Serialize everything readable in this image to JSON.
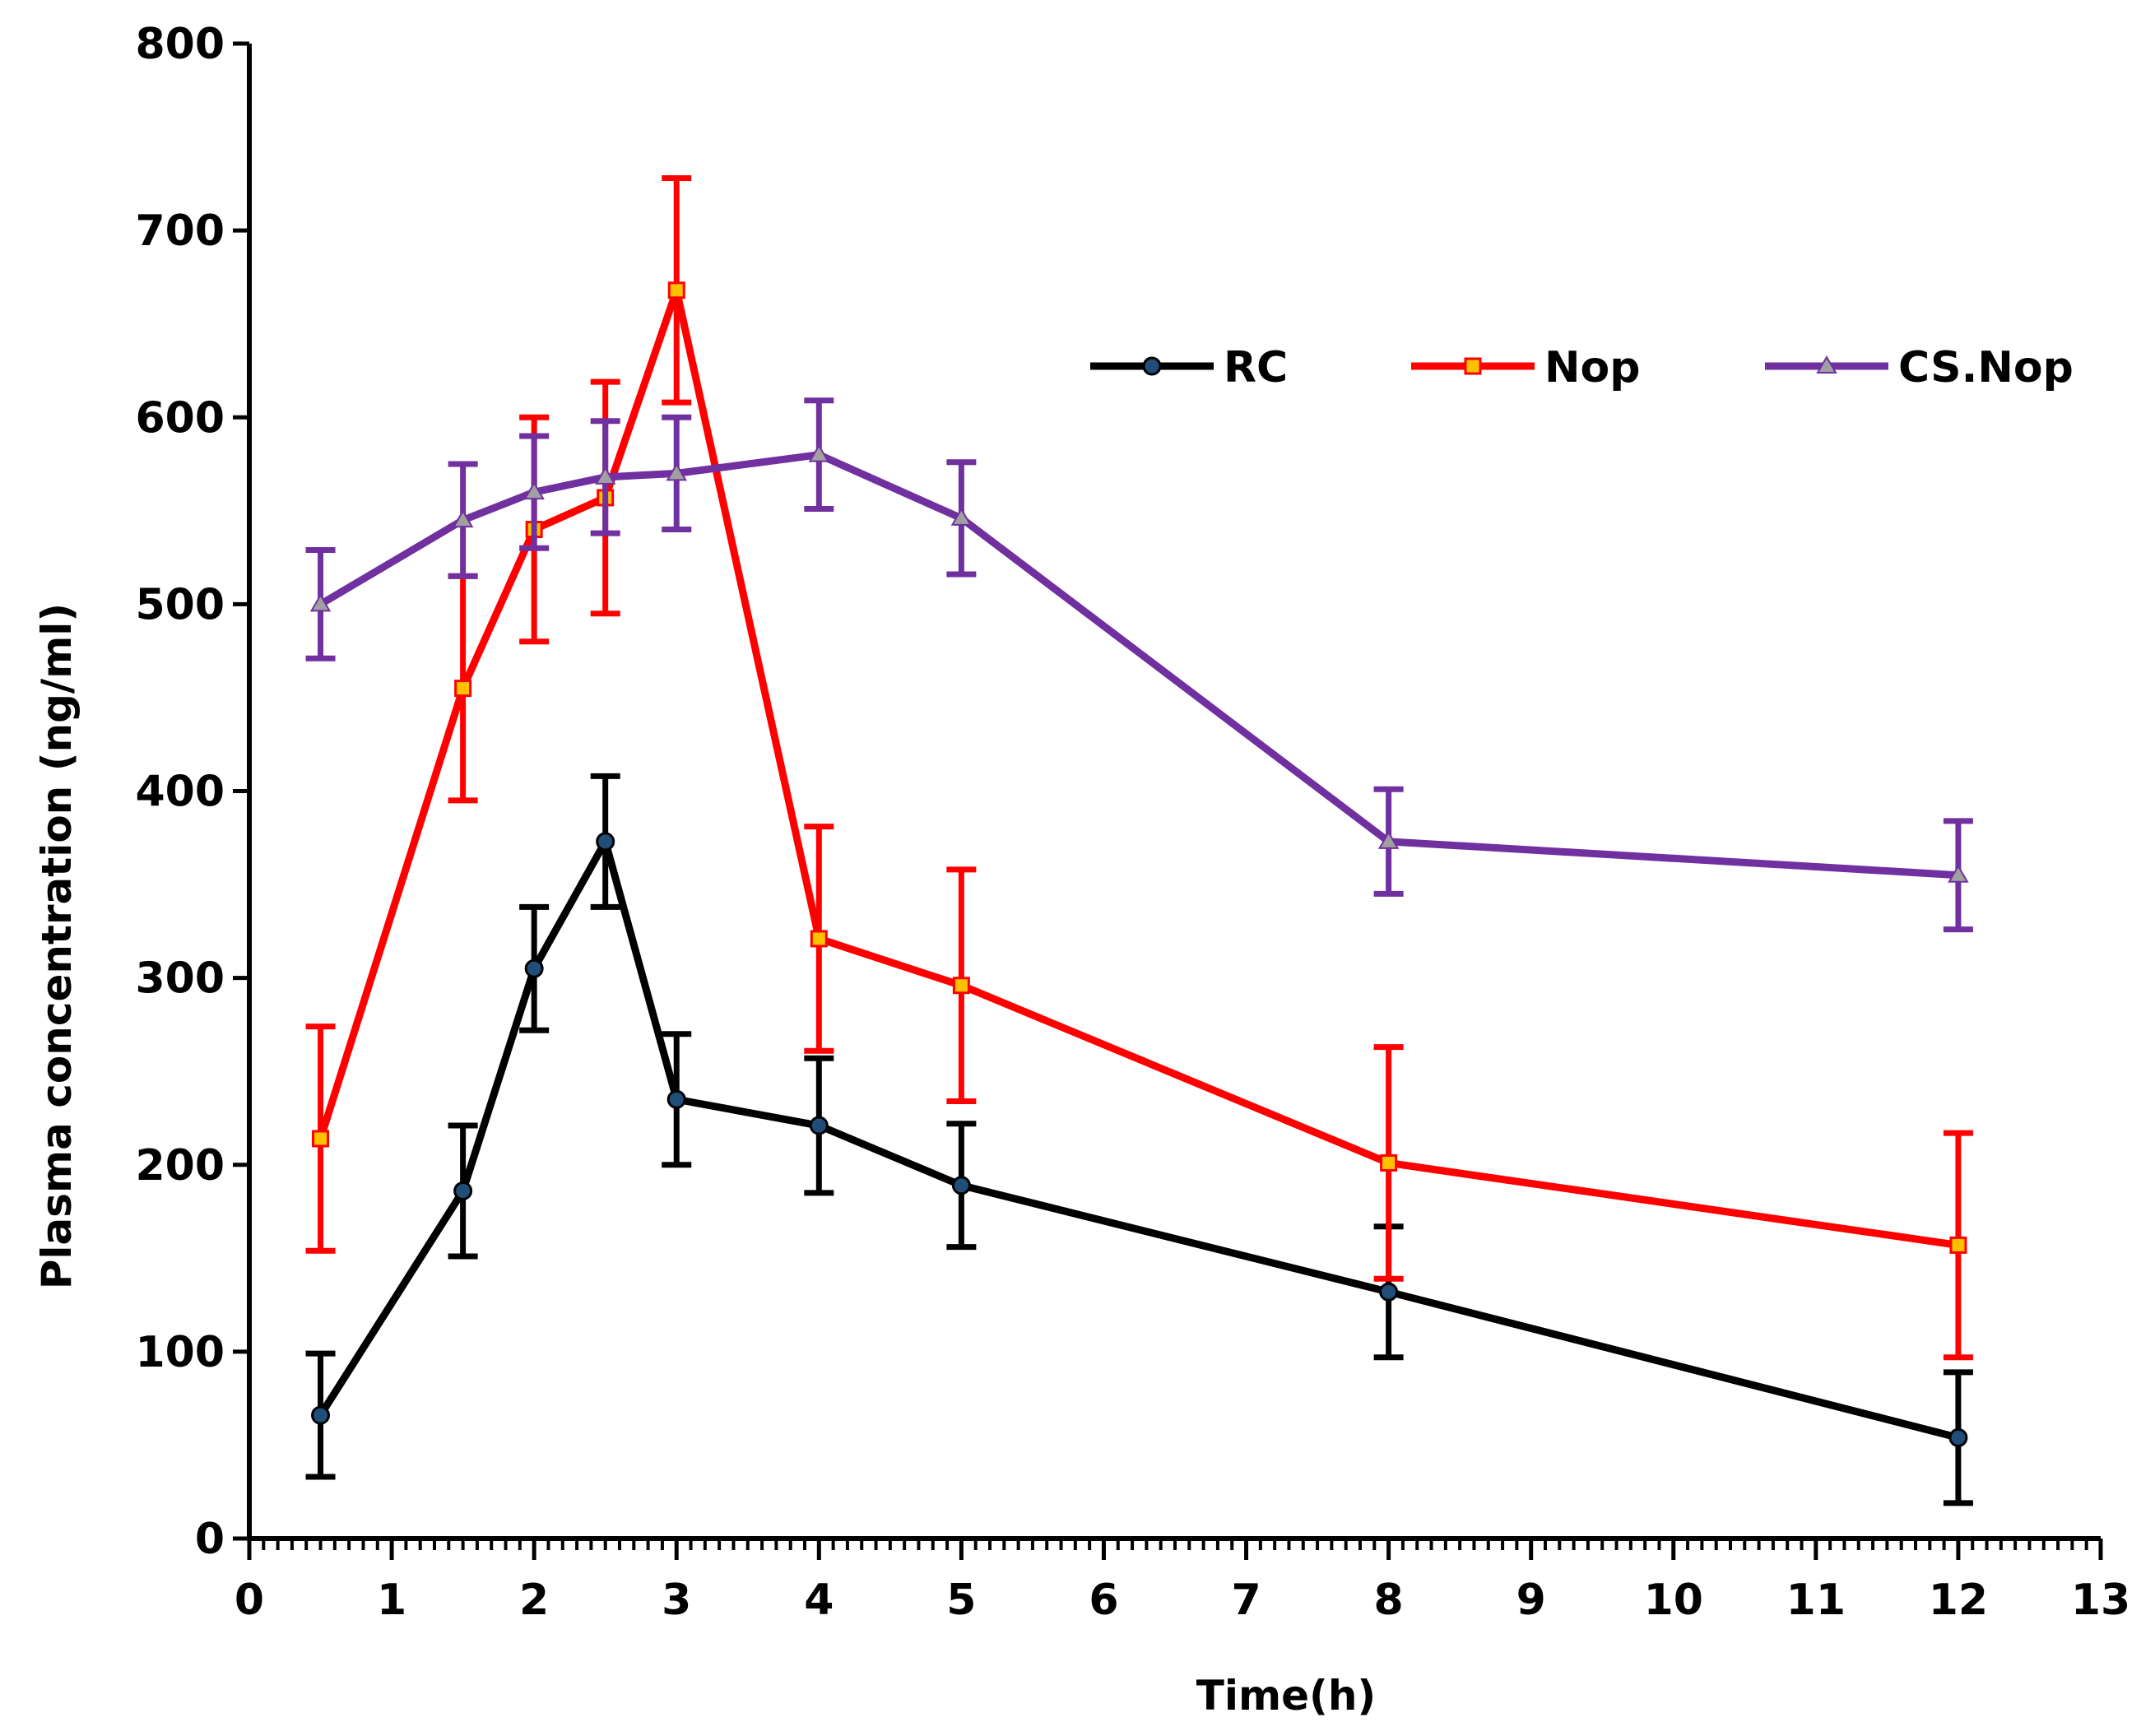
{
  "chart_data": {
    "type": "line",
    "title": "",
    "xlabel": "Time(h)",
    "ylabel": "Plasma concentration (ng/ml)",
    "xlim": [
      0,
      13
    ],
    "ylim": [
      0,
      800
    ],
    "x_ticks": [
      0,
      1,
      2,
      3,
      4,
      5,
      6,
      7,
      8,
      9,
      10,
      11,
      12,
      13
    ],
    "y_ticks": [
      0,
      100,
      200,
      300,
      400,
      500,
      600,
      700,
      800
    ],
    "x_tick_labels": [
      "0",
      "1",
      "2",
      "3",
      "4",
      "5",
      "6",
      "7",
      "8",
      "9",
      "10",
      "11",
      "12",
      "13"
    ],
    "y_tick_labels": [
      "0",
      "100",
      "200",
      "300",
      "400",
      "500",
      "600",
      "700",
      "800"
    ],
    "grid": false,
    "legend_position": "top-right",
    "series": [
      {
        "name": "RC",
        "color": "#000000",
        "marker": "circle",
        "x": [
          0.5,
          1.5,
          2,
          2.5,
          3,
          4,
          5,
          8,
          12
        ],
        "values": [
          66,
          186,
          305,
          373,
          235,
          221,
          189,
          132,
          54
        ],
        "errors": [
          33,
          35,
          33,
          35,
          35,
          36,
          33,
          35,
          35
        ]
      },
      {
        "name": "Nop",
        "color": "#ff0000",
        "marker": "square",
        "x": [
          0.5,
          1.5,
          2,
          2.5,
          3,
          4,
          5,
          8,
          12
        ],
        "values": [
          214,
          455,
          540,
          557,
          668,
          321,
          296,
          201,
          157
        ],
        "errors": [
          60,
          60,
          60,
          62,
          60,
          60,
          62,
          62,
          60
        ]
      },
      {
        "name": "CS.Nop",
        "color": "#7030a0",
        "marker": "triangle",
        "x": [
          0.5,
          1.5,
          2,
          2.5,
          3,
          4,
          5,
          8,
          12
        ],
        "values": [
          500,
          545,
          560,
          568,
          570,
          580,
          546,
          373,
          355
        ],
        "errors": [
          29,
          30,
          30,
          30,
          30,
          29,
          30,
          28,
          29
        ]
      }
    ]
  }
}
